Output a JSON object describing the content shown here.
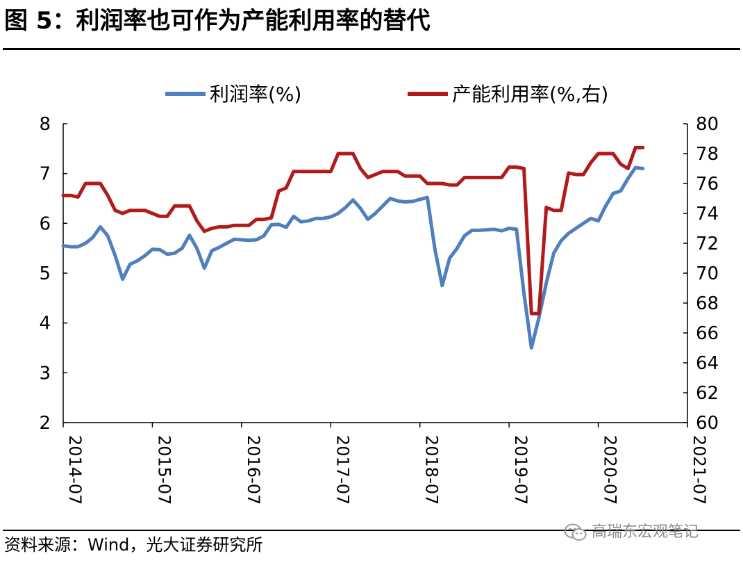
{
  "header": {
    "title": "图 5：利润率也可作为产能利用率的替代"
  },
  "footer": {
    "source": "资料来源：Wind，光大证券研究所",
    "watermark": "高瑞东宏观笔记",
    "watermark_icon": "wechat-icon"
  },
  "chart_data": {
    "type": "line",
    "title": "",
    "grid": false,
    "legend_position": "top",
    "x_ticks": [
      "2014-07",
      "2015-07",
      "2016-07",
      "2017-07",
      "2018-07",
      "2019-07",
      "2020-07",
      "2021-07"
    ],
    "y_left": {
      "ticks": [
        "2",
        "3",
        "4",
        "5",
        "6",
        "7",
        "8"
      ],
      "range": [
        2,
        8
      ]
    },
    "y_right": {
      "ticks": [
        "60",
        "62",
        "64",
        "66",
        "68",
        "70",
        "72",
        "74",
        "76",
        "78",
        "80"
      ],
      "range": [
        60,
        80
      ]
    },
    "series": [
      {
        "name": "利润率(%)",
        "axis": "left",
        "color": "#4f7fbd",
        "points": [
          [
            "2014-07",
            5.55
          ],
          [
            "2014-08",
            5.53
          ],
          [
            "2014-09",
            5.53
          ],
          [
            "2014-10",
            5.6
          ],
          [
            "2014-11",
            5.72
          ],
          [
            "2014-12",
            5.93
          ],
          [
            "2015-01",
            5.75
          ],
          [
            "2015-02",
            5.35
          ],
          [
            "2015-03",
            4.88
          ],
          [
            "2015-04",
            5.18
          ],
          [
            "2015-05",
            5.25
          ],
          [
            "2015-06",
            5.35
          ],
          [
            "2015-07",
            5.48
          ],
          [
            "2015-08",
            5.47
          ],
          [
            "2015-09",
            5.38
          ],
          [
            "2015-10",
            5.4
          ],
          [
            "2015-11",
            5.5
          ],
          [
            "2015-12",
            5.76
          ],
          [
            "2016-01",
            5.5
          ],
          [
            "2016-02",
            5.1
          ],
          [
            "2016-03",
            5.45
          ],
          [
            "2016-04",
            5.52
          ],
          [
            "2016-05",
            5.6
          ],
          [
            "2016-06",
            5.68
          ],
          [
            "2016-07",
            5.67
          ],
          [
            "2016-08",
            5.66
          ],
          [
            "2016-09",
            5.67
          ],
          [
            "2016-10",
            5.75
          ],
          [
            "2016-11",
            5.97
          ],
          [
            "2016-12",
            5.98
          ],
          [
            "2017-01",
            5.92
          ],
          [
            "2017-02",
            6.14
          ],
          [
            "2017-03",
            6.03
          ],
          [
            "2017-04",
            6.05
          ],
          [
            "2017-05",
            6.1
          ],
          [
            "2017-06",
            6.1
          ],
          [
            "2017-07",
            6.13
          ],
          [
            "2017-08",
            6.2
          ],
          [
            "2017-09",
            6.32
          ],
          [
            "2017-10",
            6.47
          ],
          [
            "2017-11",
            6.3
          ],
          [
            "2017-12",
            6.08
          ],
          [
            "2018-01",
            6.2
          ],
          [
            "2018-02",
            6.35
          ],
          [
            "2018-03",
            6.5
          ],
          [
            "2018-04",
            6.45
          ],
          [
            "2018-05",
            6.43
          ],
          [
            "2018-06",
            6.44
          ],
          [
            "2018-07",
            6.48
          ],
          [
            "2018-08",
            6.52
          ],
          [
            "2018-09",
            5.5
          ],
          [
            "2018-10",
            4.75
          ],
          [
            "2018-11",
            5.3
          ],
          [
            "2018-12",
            5.5
          ],
          [
            "2019-01",
            5.75
          ],
          [
            "2019-02",
            5.86
          ],
          [
            "2019-03",
            5.86
          ],
          [
            "2019-04",
            5.87
          ],
          [
            "2019-05",
            5.88
          ],
          [
            "2019-06",
            5.85
          ],
          [
            "2019-07",
            5.9
          ],
          [
            "2019-08",
            5.88
          ],
          [
            "2019-09",
            4.6
          ],
          [
            "2019-10",
            3.5
          ],
          [
            "2019-11",
            4.1
          ],
          [
            "2019-12",
            4.8
          ],
          [
            "2020-01",
            5.4
          ],
          [
            "2020-02",
            5.65
          ],
          [
            "2020-03",
            5.8
          ],
          [
            "2020-04",
            5.9
          ],
          [
            "2020-05",
            6.0
          ],
          [
            "2020-06",
            6.1
          ],
          [
            "2020-07",
            6.05
          ],
          [
            "2020-08",
            6.35
          ],
          [
            "2020-09",
            6.6
          ],
          [
            "2020-10",
            6.65
          ],
          [
            "2020-11",
            6.9
          ],
          [
            "2020-12",
            7.12
          ],
          [
            "2021-01",
            7.1
          ]
        ]
      },
      {
        "name": "产能利用率(%,右)",
        "axis": "right",
        "color": "#b01b1b",
        "points": [
          [
            "2014-07",
            75.2
          ],
          [
            "2014-08",
            75.2
          ],
          [
            "2014-09",
            75.1
          ],
          [
            "2014-10",
            76.0
          ],
          [
            "2014-11",
            76.0
          ],
          [
            "2014-12",
            76.0
          ],
          [
            "2015-01",
            75.2
          ],
          [
            "2015-02",
            74.2
          ],
          [
            "2015-03",
            74.0
          ],
          [
            "2015-04",
            74.2
          ],
          [
            "2015-05",
            74.2
          ],
          [
            "2015-06",
            74.2
          ],
          [
            "2015-07",
            74.0
          ],
          [
            "2015-08",
            73.8
          ],
          [
            "2015-09",
            73.8
          ],
          [
            "2015-10",
            74.5
          ],
          [
            "2015-11",
            74.5
          ],
          [
            "2015-12",
            74.5
          ],
          [
            "2016-01",
            73.5
          ],
          [
            "2016-02",
            72.8
          ],
          [
            "2016-03",
            73.0
          ],
          [
            "2016-04",
            73.1
          ],
          [
            "2016-05",
            73.1
          ],
          [
            "2016-06",
            73.2
          ],
          [
            "2016-07",
            73.2
          ],
          [
            "2016-08",
            73.2
          ],
          [
            "2016-09",
            73.6
          ],
          [
            "2016-10",
            73.6
          ],
          [
            "2016-11",
            73.7
          ],
          [
            "2016-12",
            75.5
          ],
          [
            "2017-01",
            75.7
          ],
          [
            "2017-02",
            76.8
          ],
          [
            "2017-03",
            76.8
          ],
          [
            "2017-04",
            76.8
          ],
          [
            "2017-05",
            76.8
          ],
          [
            "2017-06",
            76.8
          ],
          [
            "2017-07",
            76.8
          ],
          [
            "2017-08",
            78.0
          ],
          [
            "2017-09",
            78.0
          ],
          [
            "2017-10",
            78.0
          ],
          [
            "2017-11",
            77.0
          ],
          [
            "2017-12",
            76.4
          ],
          [
            "2018-01",
            76.6
          ],
          [
            "2018-02",
            76.8
          ],
          [
            "2018-03",
            76.8
          ],
          [
            "2018-04",
            76.8
          ],
          [
            "2018-05",
            76.5
          ],
          [
            "2018-06",
            76.5
          ],
          [
            "2018-07",
            76.5
          ],
          [
            "2018-08",
            76.0
          ],
          [
            "2018-09",
            76.0
          ],
          [
            "2018-10",
            76.0
          ],
          [
            "2018-11",
            75.9
          ],
          [
            "2018-12",
            75.9
          ],
          [
            "2019-01",
            76.4
          ],
          [
            "2019-02",
            76.4
          ],
          [
            "2019-03",
            76.4
          ],
          [
            "2019-04",
            76.4
          ],
          [
            "2019-05",
            76.4
          ],
          [
            "2019-06",
            76.4
          ],
          [
            "2019-07",
            77.1
          ],
          [
            "2019-08",
            77.1
          ],
          [
            "2019-09",
            77.0
          ],
          [
            "2019-10",
            67.3
          ],
          [
            "2019-11",
            67.3
          ],
          [
            "2019-12",
            74.4
          ],
          [
            "2020-01",
            74.2
          ],
          [
            "2020-02",
            74.2
          ],
          [
            "2020-03",
            76.7
          ],
          [
            "2020-04",
            76.6
          ],
          [
            "2020-05",
            76.6
          ],
          [
            "2020-06",
            77.4
          ],
          [
            "2020-07",
            78.0
          ],
          [
            "2020-08",
            78.0
          ],
          [
            "2020-09",
            78.0
          ],
          [
            "2020-10",
            77.3
          ],
          [
            "2020-11",
            77.0
          ],
          [
            "2020-12",
            78.4
          ],
          [
            "2021-01",
            78.4
          ]
        ]
      }
    ]
  }
}
